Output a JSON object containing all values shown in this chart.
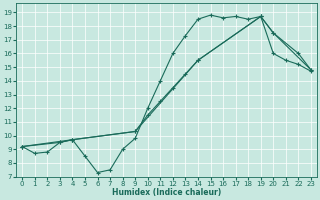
{
  "title": "",
  "xlabel": "Humidex (Indice chaleur)",
  "bg_color": "#c8e8e0",
  "line_color": "#1a6b5a",
  "xlim": [
    -0.5,
    23.5
  ],
  "ylim": [
    7,
    19.7
  ],
  "xticks": [
    0,
    1,
    2,
    3,
    4,
    5,
    6,
    7,
    8,
    9,
    10,
    11,
    12,
    13,
    14,
    15,
    16,
    17,
    18,
    19,
    20,
    21,
    22,
    23
  ],
  "yticks": [
    7,
    8,
    9,
    10,
    11,
    12,
    13,
    14,
    15,
    16,
    17,
    18,
    19
  ],
  "line1_x": [
    0,
    1,
    2,
    3,
    4,
    5,
    6,
    7,
    8,
    9,
    10,
    11,
    12,
    13,
    14,
    15,
    16,
    17,
    18,
    19,
    20,
    21,
    22,
    23
  ],
  "line1_y": [
    9.2,
    8.7,
    8.8,
    9.5,
    9.7,
    8.5,
    7.3,
    7.5,
    9.0,
    9.8,
    12.0,
    14.0,
    16.0,
    17.3,
    18.5,
    18.8,
    18.6,
    18.7,
    18.5,
    18.7,
    16.0,
    15.5,
    15.2,
    14.7
  ],
  "line2_x": [
    0,
    3,
    4,
    9,
    10,
    11,
    12,
    13,
    14,
    19,
    20,
    22,
    23
  ],
  "line2_y": [
    9.2,
    9.5,
    9.7,
    10.3,
    11.5,
    12.5,
    13.5,
    14.5,
    15.5,
    18.7,
    17.5,
    16.0,
    14.8
  ],
  "line3_x": [
    0,
    4,
    9,
    14,
    19,
    20,
    23
  ],
  "line3_y": [
    9.2,
    9.7,
    10.3,
    15.5,
    18.7,
    17.5,
    14.8
  ]
}
